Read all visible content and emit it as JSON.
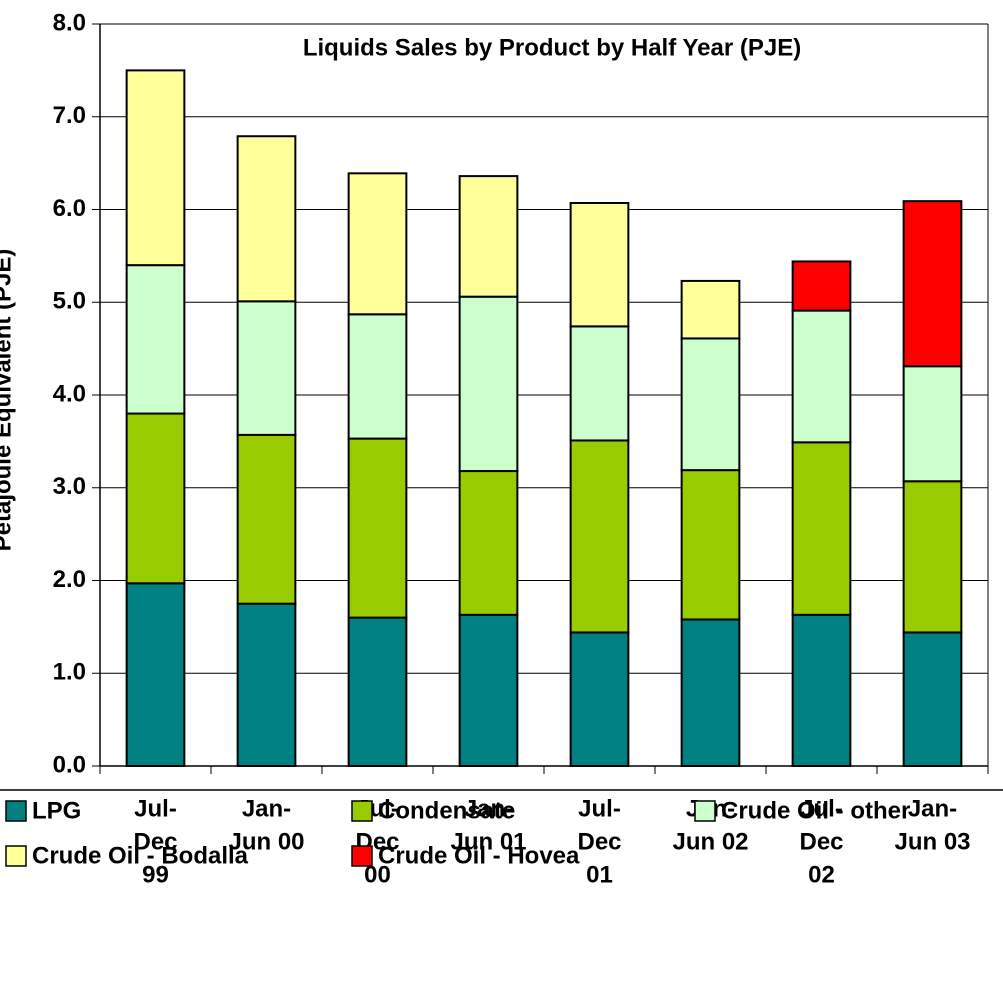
{
  "chart_data": {
    "type": "stacked_bar",
    "title": "Liquids Sales by Product by Half Year (PJE)",
    "y_label": "Petajoule Equivalent (PJE)",
    "categories": [
      [
        "Jul-",
        "Dec",
        "99"
      ],
      [
        "Jan-",
        "Jun 00"
      ],
      [
        "Jul-",
        "Dec",
        "00"
      ],
      [
        "Jan-",
        "Jun 01"
      ],
      [
        "Jul-",
        "Dec",
        "01"
      ],
      [
        "Jan-",
        "Jun 02"
      ],
      [
        "Jul-",
        "Dec",
        "02"
      ],
      [
        "Jan-",
        "Jun 03"
      ]
    ],
    "series": [
      {
        "name": "LPG",
        "color": "#008080",
        "values": [
          1.97,
          1.75,
          1.6,
          1.63,
          1.44,
          1.58,
          1.63,
          1.44
        ]
      },
      {
        "name": "Condensate",
        "color": "#99cc00",
        "values": [
          1.83,
          1.82,
          1.93,
          1.55,
          2.07,
          1.61,
          1.86,
          1.63
        ]
      },
      {
        "name": "Crude Oil - other",
        "color": "#ccffcc",
        "values": [
          1.6,
          1.44,
          1.34,
          1.88,
          1.23,
          1.42,
          1.42,
          1.24
        ]
      },
      {
        "name": "Crude Oil - Bodalla",
        "color": "#ffff99",
        "values": [
          2.1,
          1.78,
          1.52,
          1.3,
          1.33,
          0.62,
          0,
          0
        ]
      },
      {
        "name": "Crude Oil - Hovea",
        "color": "#ff0000",
        "values": [
          0,
          0,
          0,
          0,
          0,
          0,
          0.53,
          1.78
        ]
      }
    ],
    "ylim": [
      0,
      8
    ],
    "yticks": [
      {
        "value": 0,
        "label": "0.0"
      },
      {
        "value": 1,
        "label": "1.0"
      },
      {
        "value": 2,
        "label": "2.0"
      },
      {
        "value": 3,
        "label": "3.0"
      },
      {
        "value": 4,
        "label": "4.0"
      },
      {
        "value": 5,
        "label": "5.0"
      },
      {
        "value": 6,
        "label": "6.0"
      },
      {
        "value": 7,
        "label": "7.0"
      },
      {
        "value": 8,
        "label": "8.0"
      }
    ],
    "grid": true
  }
}
